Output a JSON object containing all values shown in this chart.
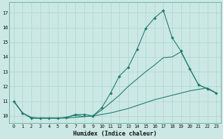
{
  "xlabel": "Humidex (Indice chaleur)",
  "bg_color": "#cce8e4",
  "line_color": "#1e7b6e",
  "grid_color": "#aad4ce",
  "xlim": [
    -0.5,
    23.5
  ],
  "ylim": [
    9.5,
    17.7
  ],
  "xticks": [
    0,
    1,
    2,
    3,
    4,
    5,
    6,
    7,
    8,
    9,
    10,
    11,
    12,
    13,
    14,
    15,
    16,
    17,
    18,
    19,
    20,
    21,
    22,
    23
  ],
  "yticks": [
    10,
    11,
    12,
    13,
    14,
    15,
    16,
    17
  ],
  "line1_x": [
    0,
    1,
    2,
    3,
    4,
    5,
    6,
    7,
    8,
    9,
    10,
    11,
    12,
    13,
    14,
    15,
    16,
    17,
    18,
    19,
    20,
    21,
    22,
    23
  ],
  "line1_y": [
    11.0,
    10.2,
    9.85,
    9.85,
    9.85,
    9.85,
    9.9,
    10.1,
    10.1,
    10.0,
    10.55,
    11.55,
    12.7,
    13.3,
    14.5,
    15.95,
    16.65,
    17.15,
    15.3,
    14.4,
    13.2,
    12.1,
    11.85,
    11.55
  ],
  "line2_x": [
    0,
    1,
    2,
    3,
    4,
    5,
    6,
    7,
    8,
    9,
    10,
    11,
    12,
    13,
    14,
    15,
    16,
    17,
    18,
    19,
    20,
    21,
    22,
    23
  ],
  "line2_y": [
    11.0,
    10.2,
    9.85,
    9.85,
    9.85,
    9.85,
    9.9,
    10.05,
    9.95,
    10.0,
    10.4,
    10.9,
    11.4,
    12.0,
    12.5,
    13.0,
    13.45,
    13.95,
    14.0,
    14.35,
    13.2,
    12.1,
    11.85,
    11.55
  ],
  "line3_x": [
    0,
    1,
    2,
    3,
    4,
    5,
    6,
    7,
    8,
    9,
    10,
    11,
    12,
    13,
    14,
    15,
    16,
    17,
    18,
    19,
    20,
    21,
    22,
    23
  ],
  "line3_y": [
    11.0,
    10.2,
    9.9,
    9.85,
    9.85,
    9.85,
    9.85,
    9.9,
    9.95,
    10.0,
    10.1,
    10.2,
    10.35,
    10.5,
    10.7,
    10.9,
    11.1,
    11.25,
    11.4,
    11.55,
    11.7,
    11.8,
    11.9,
    11.55
  ]
}
